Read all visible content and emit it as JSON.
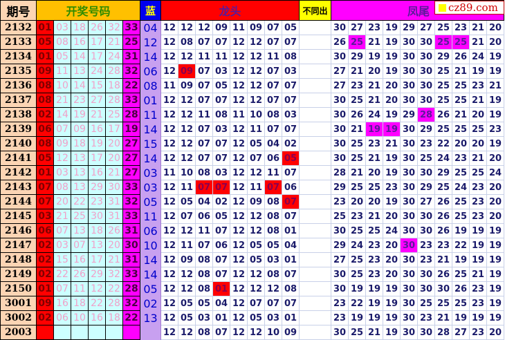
{
  "headers": {
    "period": "期号",
    "draw": "开奖号码",
    "blue": "蓝",
    "longtou": "龙头",
    "diff": "不同出",
    "fengwei": "凤尾"
  },
  "logo": {
    "text": "cz89.com",
    "square_color": "#ffff00"
  },
  "colors": {
    "highlight_red": "#ff0000",
    "highlight_magenta": "#ff00ff",
    "blue_col": "#c8a0f0"
  },
  "rows": [
    {
      "period": "2132",
      "red": [
        "01",
        "03",
        "18",
        "26",
        "32",
        "33"
      ],
      "blue": "04",
      "longtou": [
        "12",
        "12",
        "12",
        "09",
        "11",
        "09",
        "07",
        "05"
      ],
      "longtou_hl": [],
      "fengwei": [
        "30",
        "27",
        "23",
        "19",
        "29",
        "27",
        "25",
        "23",
        "21",
        "20"
      ],
      "fengwei_hl": []
    },
    {
      "period": "2133",
      "red": [
        "05",
        "08",
        "16",
        "17",
        "21",
        "25"
      ],
      "blue": "12",
      "longtou": [
        "12",
        "08",
        "07",
        "07",
        "12",
        "12",
        "07",
        "07"
      ],
      "longtou_hl": [],
      "fengwei": [
        "26",
        "25",
        "21",
        "19",
        "30",
        "30",
        "25",
        "25",
        "21",
        "20"
      ],
      "fengwei_hl": [
        1,
        6,
        7
      ]
    },
    {
      "period": "2134",
      "red": [
        "01",
        "05",
        "14",
        "17",
        "24",
        "31"
      ],
      "blue": "14",
      "longtou": [
        "12",
        "12",
        "11",
        "11",
        "12",
        "12",
        "11",
        "08"
      ],
      "longtou_hl": [],
      "fengwei": [
        "30",
        "29",
        "19",
        "19",
        "30",
        "30",
        "29",
        "26",
        "24",
        "19"
      ],
      "fengwei_hl": []
    },
    {
      "period": "2135",
      "red": [
        "09",
        "11",
        "13",
        "24",
        "28",
        "32"
      ],
      "blue": "06",
      "longtou": [
        "12",
        "09",
        "07",
        "03",
        "12",
        "12",
        "07",
        "03"
      ],
      "longtou_hl": [
        1
      ],
      "fengwei": [
        "27",
        "21",
        "20",
        "19",
        "30",
        "30",
        "25",
        "21",
        "19",
        "19"
      ],
      "fengwei_hl": []
    },
    {
      "period": "2136",
      "red": [
        "08",
        "10",
        "14",
        "15",
        "18",
        "22"
      ],
      "blue": "08",
      "longtou": [
        "11",
        "09",
        "07",
        "05",
        "12",
        "12",
        "07",
        "07"
      ],
      "longtou_hl": [],
      "fengwei": [
        "27",
        "23",
        "21",
        "20",
        "30",
        "30",
        "25",
        "25",
        "23",
        "21"
      ],
      "fengwei_hl": []
    },
    {
      "period": "2137",
      "red": [
        "08",
        "21",
        "23",
        "27",
        "28",
        "33"
      ],
      "blue": "01",
      "longtou": [
        "12",
        "12",
        "07",
        "07",
        "12",
        "12",
        "07",
        "07"
      ],
      "longtou_hl": [],
      "fengwei": [
        "30",
        "25",
        "21",
        "20",
        "30",
        "30",
        "25",
        "25",
        "21",
        "19"
      ],
      "fengwei_hl": []
    },
    {
      "period": "2138",
      "red": [
        "02",
        "14",
        "19",
        "21",
        "25",
        "28"
      ],
      "blue": "11",
      "longtou": [
        "12",
        "12",
        "11",
        "08",
        "11",
        "10",
        "08",
        "03"
      ],
      "longtou_hl": [],
      "fengwei": [
        "30",
        "26",
        "24",
        "19",
        "29",
        "28",
        "26",
        "21",
        "20",
        "19"
      ],
      "fengwei_hl": [
        5
      ]
    },
    {
      "period": "2139",
      "red": [
        "06",
        "07",
        "09",
        "16",
        "17",
        "19"
      ],
      "blue": "14",
      "longtou": [
        "12",
        "12",
        "07",
        "03",
        "12",
        "11",
        "07",
        "07"
      ],
      "longtou_hl": [],
      "fengwei": [
        "30",
        "21",
        "19",
        "19",
        "30",
        "29",
        "25",
        "25",
        "25",
        "23"
      ],
      "fengwei_hl": [
        2,
        3
      ]
    },
    {
      "period": "2140",
      "red": [
        "08",
        "09",
        "18",
        "19",
        "20",
        "27"
      ],
      "blue": "15",
      "longtou": [
        "12",
        "12",
        "07",
        "07",
        "12",
        "05",
        "04",
        "02"
      ],
      "longtou_hl": [],
      "fengwei": [
        "30",
        "25",
        "23",
        "21",
        "30",
        "23",
        "22",
        "20",
        "20",
        "19"
      ],
      "fengwei_hl": []
    },
    {
      "period": "2141",
      "red": [
        "05",
        "12",
        "13",
        "17",
        "20",
        "27"
      ],
      "blue": "14",
      "longtou": [
        "12",
        "12",
        "07",
        "07",
        "12",
        "07",
        "06",
        "05"
      ],
      "longtou_hl": [
        7
      ],
      "fengwei": [
        "30",
        "25",
        "21",
        "19",
        "30",
        "25",
        "24",
        "23",
        "21",
        "20"
      ],
      "fengwei_hl": []
    },
    {
      "period": "2142",
      "red": [
        "01",
        "03",
        "13",
        "16",
        "21",
        "27"
      ],
      "blue": "03",
      "longtou": [
        "11",
        "10",
        "08",
        "03",
        "12",
        "12",
        "11",
        "07"
      ],
      "longtou_hl": [],
      "fengwei": [
        "28",
        "21",
        "20",
        "19",
        "30",
        "30",
        "29",
        "25",
        "25",
        "24"
      ],
      "fengwei_hl": []
    },
    {
      "period": "2143",
      "red": [
        "07",
        "08",
        "13",
        "29",
        "30",
        "33"
      ],
      "blue": "03",
      "longtou": [
        "12",
        "11",
        "07",
        "07",
        "12",
        "11",
        "07",
        "06"
      ],
      "longtou_hl": [
        2,
        3,
        6
      ],
      "fengwei": [
        "29",
        "25",
        "25",
        "23",
        "30",
        "29",
        "25",
        "24",
        "23",
        "20"
      ],
      "fengwei_hl": []
    },
    {
      "period": "2144",
      "red": [
        "07",
        "20",
        "22",
        "23",
        "31",
        "32"
      ],
      "blue": "05",
      "longtou": [
        "12",
        "05",
        "04",
        "02",
        "12",
        "09",
        "08",
        "07"
      ],
      "longtou_hl": [
        7
      ],
      "fengwei": [
        "23",
        "20",
        "20",
        "19",
        "30",
        "27",
        "26",
        "25",
        "23",
        "20"
      ],
      "fengwei_hl": []
    },
    {
      "period": "2145",
      "red": [
        "03",
        "21",
        "25",
        "30",
        "31",
        "33"
      ],
      "blue": "11",
      "longtou": [
        "12",
        "07",
        "06",
        "05",
        "12",
        "12",
        "08",
        "07"
      ],
      "longtou_hl": [],
      "fengwei": [
        "25",
        "23",
        "21",
        "20",
        "30",
        "30",
        "26",
        "25",
        "23",
        "20"
      ],
      "fengwei_hl": []
    },
    {
      "period": "2146",
      "red": [
        "06",
        "07",
        "13",
        "18",
        "26",
        "31"
      ],
      "blue": "06",
      "longtou": [
        "12",
        "12",
        "11",
        "07",
        "12",
        "12",
        "08",
        "01"
      ],
      "longtou_hl": [],
      "fengwei": [
        "30",
        "25",
        "25",
        "24",
        "30",
        "30",
        "26",
        "19",
        "19",
        "19"
      ],
      "fengwei_hl": []
    },
    {
      "period": "2147",
      "red": [
        "02",
        "03",
        "07",
        "13",
        "20",
        "30"
      ],
      "blue": "10",
      "longtou": [
        "12",
        "11",
        "07",
        "06",
        "12",
        "05",
        "05",
        "04"
      ],
      "longtou_hl": [],
      "fengwei": [
        "29",
        "24",
        "23",
        "20",
        "30",
        "23",
        "23",
        "22",
        "19",
        "19"
      ],
      "fengwei_hl": [
        4
      ]
    },
    {
      "period": "2148",
      "red": [
        "02",
        "15",
        "16",
        "17",
        "21",
        "31"
      ],
      "blue": "14",
      "longtou": [
        "12",
        "09",
        "08",
        "07",
        "12",
        "05",
        "03",
        "01"
      ],
      "longtou_hl": [],
      "fengwei": [
        "27",
        "25",
        "23",
        "20",
        "30",
        "23",
        "21",
        "19",
        "19",
        "19"
      ],
      "fengwei_hl": []
    },
    {
      "period": "2149",
      "red": [
        "02",
        "22",
        "26",
        "29",
        "32",
        "33"
      ],
      "blue": "14",
      "longtou": [
        "12",
        "12",
        "08",
        "07",
        "12",
        "12",
        "08",
        "07"
      ],
      "longtou_hl": [],
      "fengwei": [
        "30",
        "25",
        "23",
        "20",
        "30",
        "30",
        "26",
        "25",
        "21",
        "19"
      ],
      "fengwei_hl": []
    },
    {
      "period": "2150",
      "red": [
        "01",
        "07",
        "11",
        "12",
        "22",
        "28"
      ],
      "blue": "05",
      "longtou": [
        "12",
        "12",
        "08",
        "01",
        "12",
        "12",
        "12",
        "08"
      ],
      "longtou_hl": [
        3
      ],
      "fengwei": [
        "30",
        "19",
        "19",
        "19",
        "30",
        "30",
        "30",
        "26",
        "23",
        "19"
      ],
      "fengwei_hl": []
    },
    {
      "period": "3001",
      "red": [
        "09",
        "16",
        "18",
        "22",
        "28",
        "32"
      ],
      "blue": "02",
      "longtou": [
        "12",
        "05",
        "05",
        "04",
        "12",
        "07",
        "07",
        "07"
      ],
      "longtou_hl": [],
      "fengwei": [
        "23",
        "22",
        "19",
        "19",
        "30",
        "25",
        "25",
        "25",
        "23",
        "19"
      ],
      "fengwei_hl": []
    },
    {
      "period": "3002",
      "red": [
        "02",
        "06",
        "10",
        "16",
        "18",
        "22"
      ],
      "blue": "13",
      "longtou": [
        "12",
        "05",
        "03",
        "01",
        "12",
        "05",
        "03",
        "01"
      ],
      "longtou_hl": [],
      "fengwei": [
        "23",
        "19",
        "19",
        "19",
        "30",
        "23",
        "21",
        "19",
        "19",
        "19"
      ],
      "fengwei_hl": []
    },
    {
      "period": "2003",
      "red": [
        "",
        "",
        "",
        "",
        "",
        ""
      ],
      "blue": "",
      "longtou": [
        "12",
        "12",
        "08",
        "07",
        "12",
        "12",
        "10",
        "09"
      ],
      "longtou_hl": [],
      "fengwei": [
        "30",
        "25",
        "21",
        "19",
        "30",
        "30",
        "28",
        "27",
        "23",
        "20"
      ],
      "fengwei_hl": []
    }
  ]
}
